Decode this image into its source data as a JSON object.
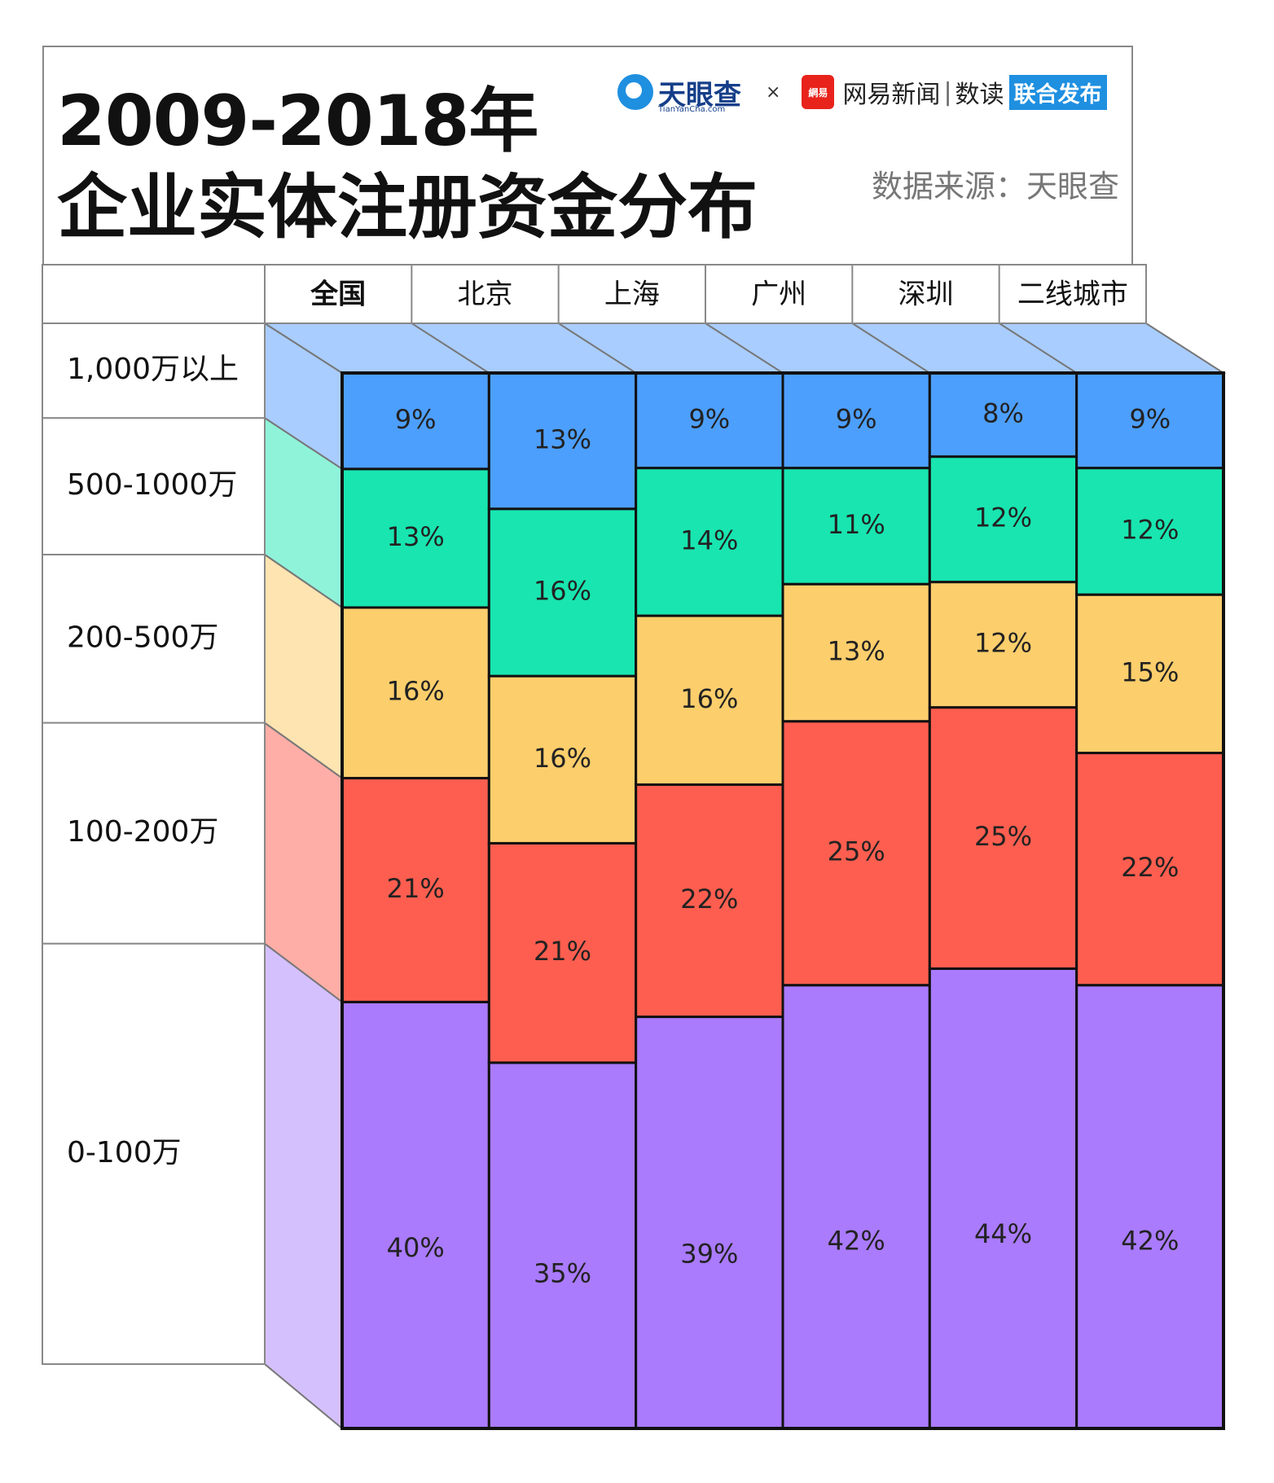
{
  "title_lines": [
    "2009-2018年",
    "企业实体注册资金分布"
  ],
  "source_note": "数据来源：天眼查",
  "branding": {
    "tianyancha": "天眼查",
    "tianyancha_sub": "TianYanCha.com",
    "times": "×",
    "netease_logo": "網易",
    "netease": "网易新闻",
    "divider": "|",
    "shudu": "数读",
    "joint_release": "联合发布"
  },
  "chart_data": {
    "type": "bar",
    "stacked": true,
    "orientation": "vertical",
    "categories": [
      "全国",
      "北京",
      "上海",
      "广州",
      "深圳",
      "二线城市"
    ],
    "series": [
      {
        "name": "0-100万",
        "values": [
          40,
          35,
          39,
          42,
          44,
          42
        ],
        "color": "#aa7bfd",
        "side_color": "#d5c0fe"
      },
      {
        "name": "100-200万",
        "values": [
          21,
          21,
          22,
          25,
          25,
          22
        ],
        "color": "#fe5e4f",
        "side_color": "#feaea6"
      },
      {
        "name": "200-500万",
        "values": [
          16,
          16,
          16,
          13,
          12,
          15
        ],
        "color": "#fdce6c",
        "side_color": "#fee4b1"
      },
      {
        "name": "500-1000万",
        "values": [
          13,
          16,
          14,
          11,
          12,
          12
        ],
        "color": "#19e5b0",
        "side_color": "#8ff3d9"
      },
      {
        "name": "1,000万以上",
        "values": [
          9,
          13,
          9,
          9,
          8,
          9
        ],
        "color": "#4d9ffd",
        "side_color": "#a9cdfe"
      }
    ],
    "value_suffix": "%",
    "legend_position": "left",
    "grid": false
  }
}
